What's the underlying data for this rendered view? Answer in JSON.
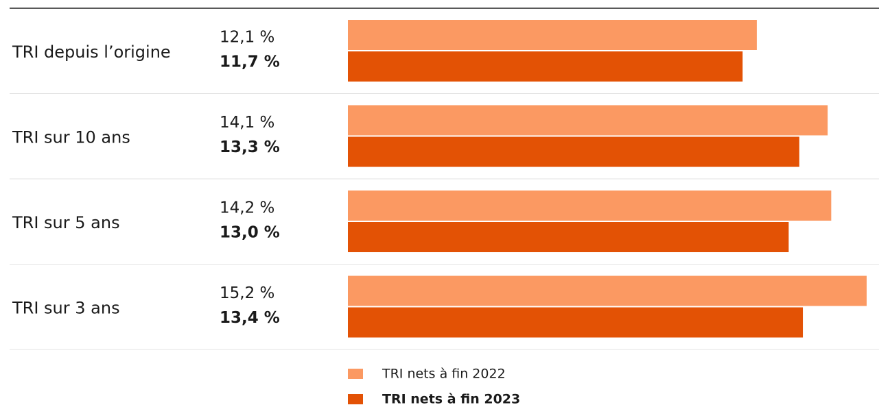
{
  "chart_data": {
    "type": "bar",
    "orientation": "horizontal",
    "categories": [
      "TRI depuis l’origine",
      "TRI sur 10 ans",
      "TRI sur 5 ans",
      "TRI sur 3 ans"
    ],
    "series": [
      {
        "name": "TRI nets à fin 2022",
        "color": "#fb9962",
        "values": [
          12.1,
          14.1,
          14.2,
          15.2
        ],
        "value_labels": [
          "12,1 %",
          "14,1 %",
          "14,2 %",
          "15,2 %"
        ]
      },
      {
        "name": "TRI nets à fin 2023",
        "color": "#e35205",
        "values": [
          11.7,
          13.3,
          13.0,
          13.4
        ],
        "value_labels": [
          "11,7 %",
          "13,3 %",
          "13,0 %",
          "13,4 %"
        ]
      }
    ]
  }
}
